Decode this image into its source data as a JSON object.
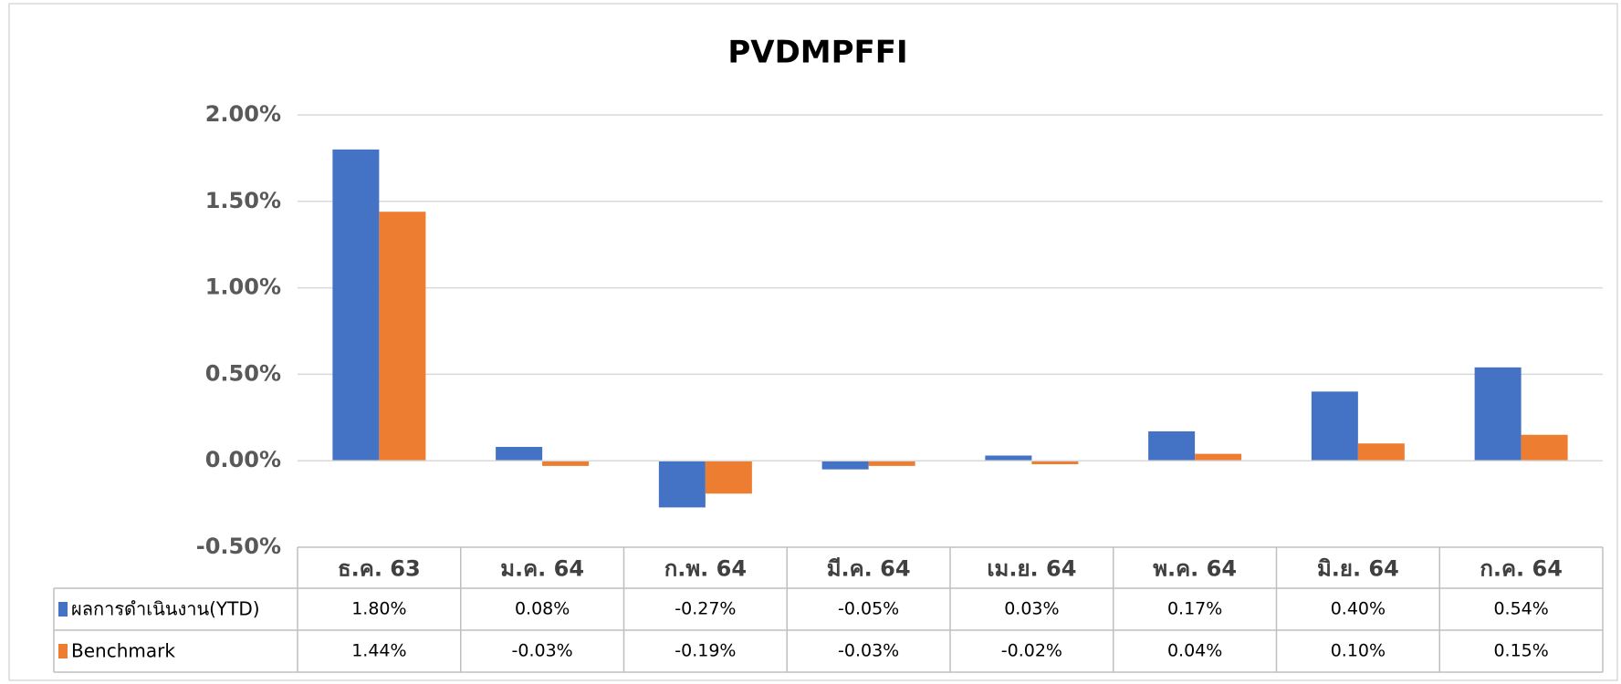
{
  "chart_data": {
    "type": "bar",
    "title": "PVDMPFFI",
    "categories": [
      "ธ.ค. 63",
      "ม.ค. 64",
      "ก.พ. 64",
      "มี.ค. 64",
      "เม.ย. 64",
      "พ.ค. 64",
      "มิ.ย. 64",
      "ก.ค. 64"
    ],
    "series": [
      {
        "name": "ผลการดำเนินงาน(YTD)",
        "color": "#4472c4",
        "values": [
          1.8,
          0.08,
          -0.27,
          -0.05,
          0.03,
          0.17,
          0.4,
          0.54
        ],
        "value_labels": [
          "1.80%",
          "0.08%",
          "-0.27%",
          "-0.05%",
          "0.03%",
          "0.17%",
          "0.40%",
          "0.54%"
        ]
      },
      {
        "name": "Benchmark",
        "color": "#ed7d31",
        "values": [
          1.44,
          -0.03,
          -0.19,
          -0.03,
          -0.02,
          0.04,
          0.1,
          0.15
        ],
        "value_labels": [
          "1.44%",
          "-0.03%",
          "-0.19%",
          "-0.03%",
          "-0.02%",
          "0.04%",
          "0.10%",
          "0.15%"
        ]
      }
    ],
    "ylim": [
      -0.5,
      2
    ],
    "yticks": [
      {
        "value": -0.5,
        "label": "-0.50%"
      },
      {
        "value": 0,
        "label": "0.00%"
      },
      {
        "value": 0.5,
        "label": "0.50%"
      },
      {
        "value": 1,
        "label": "1.00%"
      },
      {
        "value": 1.5,
        "label": "1.50%"
      },
      {
        "value": 2,
        "label": "2.00%"
      }
    ],
    "grid": true
  }
}
